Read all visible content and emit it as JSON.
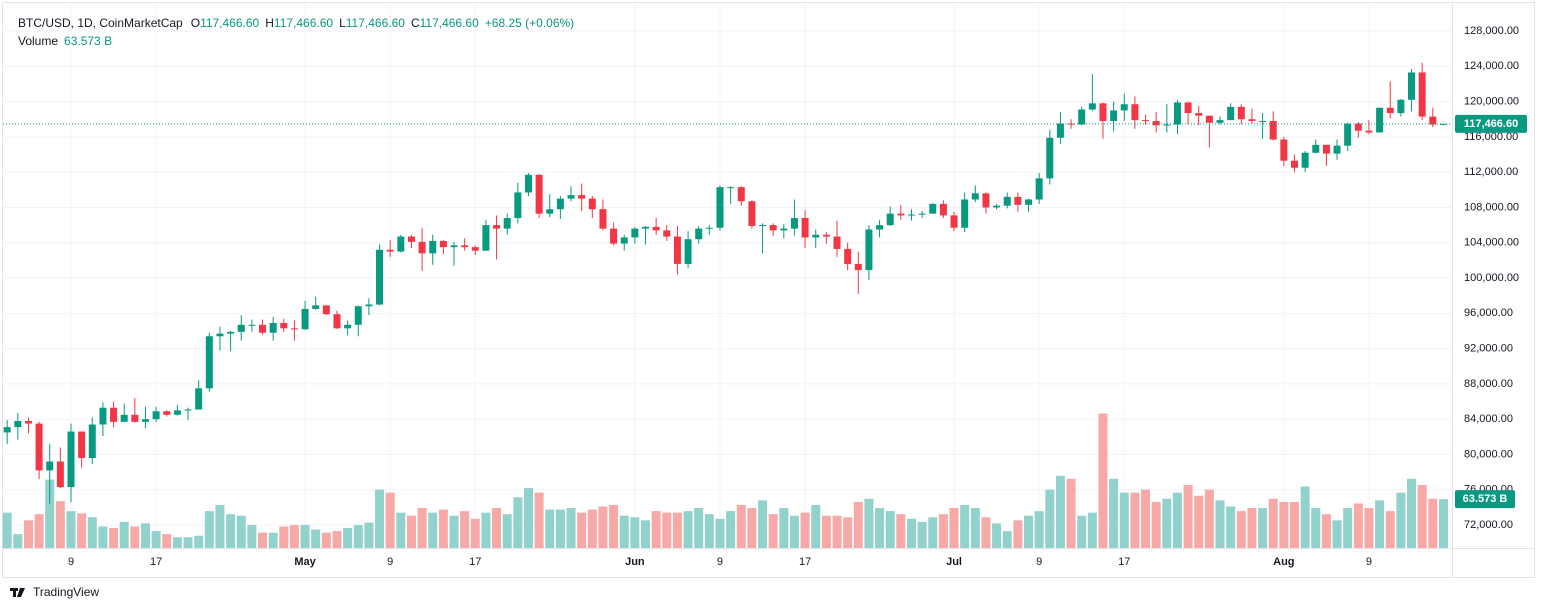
{
  "header": {
    "symbol": "BTC/USD, 1D, CoinMarketCap",
    "ohlc": [
      {
        "label": "O",
        "value": "117,466.60"
      },
      {
        "label": "H",
        "value": "117,466.60"
      },
      {
        "label": "L",
        "value": "117,466.60"
      },
      {
        "label": "C",
        "value": "117,466.60"
      }
    ],
    "change": "+68.25 (+0.06%)",
    "volume_label": "Volume",
    "volume_value": "63.573 B"
  },
  "footer": {
    "brand": "TradingView"
  },
  "chart_data": {
    "type": "candlestick",
    "categories": [
      null,
      null,
      null,
      null,
      null,
      null,
      "9",
      null,
      null,
      null,
      null,
      null,
      null,
      null,
      "17",
      null,
      null,
      null,
      null,
      null,
      null,
      null,
      null,
      null,
      null,
      null,
      null,
      null,
      "May",
      null,
      null,
      null,
      null,
      null,
      null,
      null,
      "9",
      null,
      null,
      null,
      null,
      null,
      null,
      null,
      "17",
      null,
      null,
      null,
      null,
      null,
      null,
      null,
      null,
      null,
      null,
      null,
      null,
      null,
      null,
      "Jun",
      null,
      null,
      null,
      null,
      null,
      null,
      null,
      "9",
      null,
      null,
      null,
      null,
      null,
      null,
      null,
      "17",
      null,
      null,
      null,
      null,
      null,
      null,
      null,
      null,
      null,
      null,
      null,
      null,
      null,
      "Jul",
      null,
      null,
      null,
      null,
      null,
      null,
      null,
      "9",
      null,
      null,
      null,
      null,
      null,
      null,
      null,
      "17",
      null,
      null,
      null,
      null,
      null,
      null,
      null,
      null,
      null,
      null,
      null,
      null,
      null,
      null,
      "Aug",
      null,
      null,
      null,
      null,
      null,
      null,
      null,
      "9",
      null,
      null,
      null,
      null,
      null,
      null,
      null
    ],
    "open": [
      82500,
      83100,
      83800,
      83500,
      78200,
      79200,
      76300,
      82600,
      79600,
      83400,
      85300,
      83700,
      84500,
      83700,
      84000,
      84900,
      84500,
      85000,
      85100,
      87500,
      93400,
      93700,
      93900,
      94700,
      94700,
      93800,
      94900,
      94300,
      94200,
      96500,
      96900,
      95900,
      94300,
      94700,
      96800,
      97000,
      103200,
      103000,
      104700,
      104100,
      102800,
      104200,
      103500,
      103700,
      103500,
      103100,
      106000,
      105600,
      106800,
      109700,
      111700,
      107300,
      107800,
      109000,
      109400,
      109000,
      107800,
      105600,
      103900,
      104600,
      105600,
      105800,
      105400,
      104700,
      101600,
      104400,
      105600,
      105700,
      110300,
      110300,
      108700,
      105900,
      106000,
      105400,
      105600,
      106800,
      104600,
      104900,
      104700,
      103300,
      101600,
      100900,
      105500,
      106000,
      107300,
      107100,
      107200,
      107300,
      108400,
      107100,
      105700,
      108900,
      109600,
      108000,
      108200,
      109200,
      108300,
      108900,
      111300,
      115900,
      117500,
      117400,
      119100,
      119800,
      117800,
      119000,
      119700,
      117900,
      117800,
      117300,
      117400,
      119900,
      118700,
      118400,
      117600,
      117900,
      119400,
      118000,
      117800,
      117800,
      115700,
      113300,
      112500,
      114200,
      115100,
      114100,
      115000,
      117500,
      116700,
      116500,
      119300,
      118700,
      120200,
      123300,
      118300,
      117466.6
    ],
    "high": [
      83900,
      84700,
      84200,
      83700,
      81200,
      80800,
      83500,
      82600,
      84200,
      85900,
      86000,
      85800,
      86400,
      85400,
      85400,
      85000,
      85600,
      85300,
      88400,
      93800,
      94500,
      94000,
      95800,
      95300,
      95300,
      95600,
      95400,
      95200,
      97400,
      97900,
      96900,
      96300,
      95200,
      96900,
      97700,
      103800,
      104300,
      104900,
      104900,
      105700,
      104900,
      104300,
      104100,
      104500,
      103700,
      106600,
      107100,
      107300,
      110800,
      111900,
      111800,
      109500,
      109300,
      110400,
      110700,
      109300,
      108900,
      106300,
      104900,
      105800,
      105900,
      106800,
      106000,
      105900,
      105300,
      105900,
      106000,
      110500,
      110400,
      110400,
      108800,
      106200,
      106200,
      106100,
      108900,
      107700,
      105500,
      105200,
      106500,
      104000,
      103000,
      106000,
      106600,
      108100,
      108300,
      107800,
      107600,
      108500,
      108800,
      107500,
      109700,
      110500,
      109700,
      108400,
      109700,
      109700,
      109000,
      111900,
      116800,
      118800,
      118000,
      119400,
      123100,
      119900,
      120000,
      120900,
      120600,
      118500,
      118800,
      119700,
      120200,
      120000,
      119500,
      118400,
      118300,
      119800,
      119700,
      119200,
      118700,
      118900,
      116000,
      114000,
      114400,
      115700,
      115100,
      115700,
      117600,
      117700,
      117900,
      119300,
      122300,
      120300,
      123700,
      124400,
      119300,
      117466.6
    ],
    "low": [
      81200,
      81700,
      82400,
      77200,
      74400,
      76200,
      74600,
      78500,
      78900,
      82100,
      83100,
      83700,
      83600,
      83000,
      83700,
      84300,
      84400,
      83900,
      85100,
      87100,
      91800,
      91700,
      92900,
      93900,
      93600,
      92900,
      93900,
      92900,
      94100,
      96400,
      95800,
      94200,
      93500,
      93400,
      95800,
      96900,
      102400,
      102900,
      103400,
      100800,
      101500,
      102700,
      101400,
      103100,
      102600,
      103100,
      102100,
      104900,
      106200,
      109300,
      106800,
      106900,
      106700,
      108700,
      107600,
      106800,
      105400,
      103700,
      103100,
      103900,
      103800,
      104900,
      104200,
      100400,
      101100,
      103900,
      104900,
      105400,
      108400,
      108200,
      105600,
      102800,
      104800,
      104500,
      104800,
      103400,
      103400,
      103900,
      102400,
      100900,
      98200,
      99800,
      104600,
      105900,
      106600,
      106500,
      106800,
      107300,
      106800,
      105300,
      105200,
      108600,
      107300,
      107800,
      107900,
      107500,
      107500,
      108400,
      110600,
      115200,
      116900,
      117300,
      118900,
      115800,
      116600,
      117800,
      116900,
      117400,
      116500,
      116500,
      116300,
      117400,
      117300,
      114800,
      117400,
      117900,
      117400,
      117500,
      115800,
      115600,
      112700,
      112000,
      112000,
      114100,
      112700,
      113400,
      114400,
      115900,
      116300,
      116500,
      118100,
      118300,
      118900,
      117900,
      117100,
      117466.6
    ],
    "close": [
      83100,
      83800,
      83500,
      78200,
      79200,
      76300,
      82600,
      79600,
      83400,
      85300,
      83700,
      84500,
      83700,
      84000,
      84900,
      84500,
      85000,
      85100,
      87500,
      93400,
      93700,
      93900,
      94700,
      94700,
      93800,
      94900,
      94300,
      94200,
      96500,
      96900,
      95900,
      94300,
      94700,
      96800,
      97000,
      103200,
      103000,
      104700,
      104100,
      102800,
      104200,
      103500,
      103700,
      103500,
      103100,
      106000,
      105600,
      106800,
      109700,
      111700,
      107300,
      107800,
      109000,
      109400,
      109000,
      107800,
      105600,
      103900,
      104600,
      105600,
      105800,
      105400,
      104700,
      101600,
      104400,
      105600,
      105700,
      110300,
      110300,
      108700,
      105900,
      106000,
      105400,
      105600,
      106800,
      104600,
      104900,
      104700,
      103300,
      101600,
      100900,
      105500,
      106000,
      107300,
      107100,
      107200,
      107300,
      108400,
      107100,
      105700,
      108900,
      109600,
      108000,
      108200,
      109200,
      108300,
      108900,
      111300,
      115900,
      117500,
      117400,
      119100,
      119800,
      117800,
      119000,
      119700,
      117900,
      117800,
      117300,
      117400,
      119900,
      118700,
      118400,
      117600,
      117900,
      119400,
      118000,
      117800,
      117800,
      115700,
      113300,
      112500,
      114200,
      115100,
      114100,
      115000,
      117500,
      116700,
      116500,
      119300,
      118700,
      120200,
      123300,
      118300,
      117398.35,
      117466.6
    ],
    "volume": [
      46,
      18,
      36,
      44,
      89,
      61,
      48,
      45,
      40,
      28,
      26,
      34,
      28,
      32,
      22,
      18,
      14,
      14,
      16,
      48,
      56,
      44,
      42,
      30,
      20,
      20,
      28,
      30,
      30,
      24,
      20,
      22,
      26,
      30,
      33,
      76,
      72,
      46,
      42,
      52,
      46,
      50,
      42,
      48,
      38,
      46,
      52,
      44,
      66,
      78,
      72,
      50,
      50,
      52,
      46,
      50,
      54,
      56,
      42,
      40,
      36,
      48,
      46,
      46,
      48,
      52,
      44,
      38,
      48,
      56,
      52,
      62,
      44,
      52,
      42,
      46,
      56,
      42,
      42,
      40,
      60,
      64,
      52,
      48,
      44,
      38,
      34,
      40,
      44,
      52,
      56,
      52,
      40,
      32,
      22,
      36,
      42,
      48,
      76,
      94,
      90,
      42,
      46,
      175,
      90,
      72,
      72,
      76,
      60,
      64,
      72,
      82,
      68,
      76,
      62,
      54,
      48,
      52,
      52,
      64,
      60,
      60,
      80,
      52,
      44,
      36,
      52,
      58,
      52,
      62,
      48,
      72,
      90,
      82,
      64,
      63.573
    ],
    "up_color": "#089981",
    "down_color": "#f23645",
    "up_volume_color": "#92d2cc",
    "down_volume_color": "#f7a9a7",
    "ylim": [
      69400,
      130380
    ],
    "vlim": [
      0,
      700
    ],
    "yticks": [
      {
        "value": 72000,
        "label": "72,000.00"
      },
      {
        "value": 76000,
        "label": "76,000.00"
      },
      {
        "value": 80000,
        "label": "80,000.00"
      },
      {
        "value": 84000,
        "label": "84,000.00"
      },
      {
        "value": 88000,
        "label": "88,000.00"
      },
      {
        "value": 92000,
        "label": "92,000.00"
      },
      {
        "value": 96000,
        "label": "96,000.00"
      },
      {
        "value": 100000,
        "label": "100,000.00"
      },
      {
        "value": 104000,
        "label": "104,000.00"
      },
      {
        "value": 108000,
        "label": "108,000.00"
      },
      {
        "value": 112000,
        "label": "112,000.00"
      },
      {
        "value": 116000,
        "label": "116,000.00"
      },
      {
        "value": 120000,
        "label": "120,000.00"
      },
      {
        "value": 124000,
        "label": "124,000.00"
      },
      {
        "value": 128000,
        "label": "128,000.00"
      }
    ],
    "last_price": {
      "value": 117466.6,
      "label": "117,466.60"
    },
    "grid": true
  }
}
